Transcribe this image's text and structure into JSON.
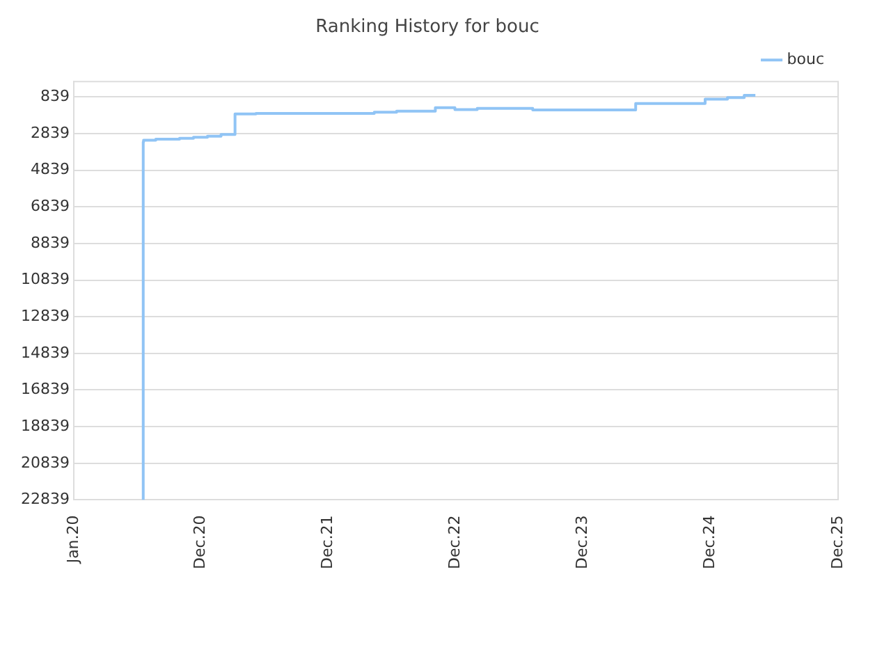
{
  "chart_data": {
    "type": "step",
    "title": "Ranking History for bouc",
    "x": [
      "2020-07-18",
      "2020-07-19",
      "2020-08-23",
      "2020-10-30",
      "2020-12-09",
      "2021-01-18",
      "2021-02-26",
      "2021-04-07",
      "2021-06-06",
      "2022-05-11",
      "2022-07-14",
      "2022-11-02",
      "2022-12-28",
      "2023-03-02",
      "2023-08-08",
      "2024-05-29",
      "2024-12-14",
      "2025-02-16",
      "2025-04-05",
      "2025-05-07"
    ],
    "series": [
      {
        "name": "bouc",
        "color": "#90c4f5",
        "values": [
          22839,
          3300,
          3200,
          3150,
          3100,
          3040,
          2980,
          2890,
          1770,
          1740,
          1675,
          1620,
          1430,
          1530,
          1460,
          1550,
          1200,
          960,
          875,
          750
        ]
      }
    ],
    "xlim": [
      "2020-01-01",
      "2025-12-30"
    ],
    "xticks": [
      {
        "value": "2020-01-01",
        "label": "Jan.20"
      },
      {
        "value": "2020-12-30",
        "label": "Dec.20"
      },
      {
        "value": "2021-12-30",
        "label": "Dec.21"
      },
      {
        "value": "2022-12-30",
        "label": "Dec.22"
      },
      {
        "value": "2023-12-30",
        "label": "Dec.23"
      },
      {
        "value": "2024-12-29",
        "label": "Dec.24"
      },
      {
        "value": "2025-12-30",
        "label": "Dec.25"
      }
    ],
    "ylim": [
      22839,
      0
    ],
    "yticks": [
      839,
      2839,
      4839,
      6839,
      8839,
      10839,
      12839,
      14839,
      16839,
      18839,
      20839,
      22839
    ],
    "grid": "y",
    "legend": "top right",
    "marker": "none",
    "line_style": "solid"
  }
}
